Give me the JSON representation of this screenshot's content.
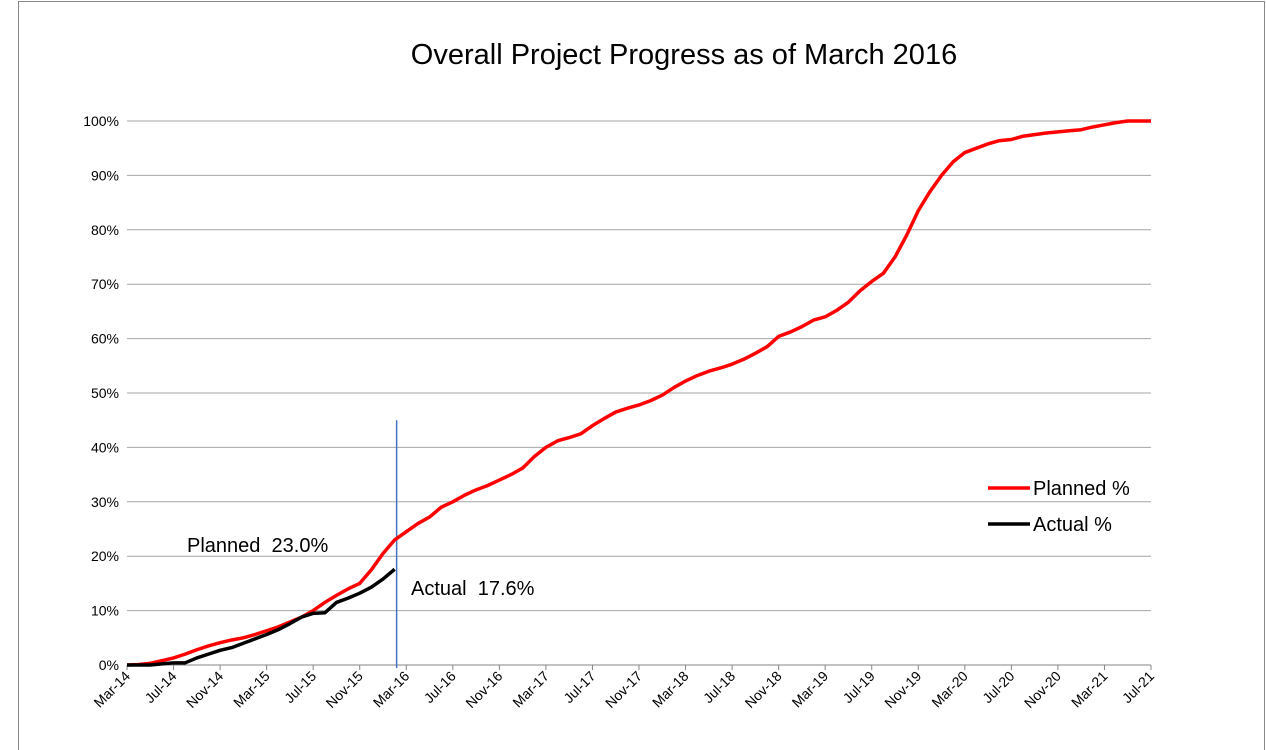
{
  "chart_data": {
    "type": "line",
    "title": "Overall Project Progress as of March 2016",
    "categories": [
      "Mar-14",
      null,
      null,
      null,
      "Jul-14",
      null,
      null,
      null,
      "Nov-14",
      null,
      null,
      null,
      "Mar-15",
      null,
      null,
      null,
      "Jul-15",
      null,
      null,
      null,
      "Nov-15",
      null,
      null,
      null,
      "Mar-16",
      null,
      null,
      null,
      "Jul-16",
      null,
      null,
      null,
      "Nov-16",
      null,
      null,
      null,
      "Mar-17",
      null,
      null,
      null,
      "Jul-17",
      null,
      null,
      null,
      "Nov-17",
      null,
      null,
      null,
      "Mar-18",
      null,
      null,
      null,
      "Jul-18",
      null,
      null,
      null,
      "Nov-18",
      null,
      null,
      null,
      "Mar-19",
      null,
      null,
      null,
      "Jul-19",
      null,
      null,
      null,
      "Nov-19",
      null,
      null,
      null,
      "Mar-20",
      null,
      null,
      null,
      "Jul-20",
      null,
      null,
      null,
      "Nov-20",
      null,
      null,
      null,
      "Mar-21",
      null,
      null,
      null,
      "Jul-21"
    ],
    "series": [
      {
        "name": "Planned %",
        "color": "#ff0000",
        "values": [
          0,
          0.1,
          0.3,
          0.8,
          1.3,
          2.0,
          2.8,
          3.5,
          4.1,
          4.6,
          5.0,
          5.6,
          6.3,
          7.0,
          7.9,
          8.8,
          10.0,
          11.5,
          12.8,
          14.0,
          15.0,
          17.5,
          20.5,
          23.0,
          24.5,
          26.0,
          27.2,
          29.0,
          30.0,
          31.2,
          32.2,
          33.0,
          34.0,
          35.0,
          36.2,
          38.3,
          40.0,
          41.2,
          41.8,
          42.5,
          44.0,
          45.3,
          46.5,
          47.2,
          47.8,
          48.6,
          49.6,
          51.0,
          52.2,
          53.2,
          54.0,
          54.6,
          55.3,
          56.2,
          57.3,
          58.5,
          60.4,
          61.2,
          62.2,
          63.4,
          64.0,
          65.2,
          66.7,
          68.8,
          70.5,
          72.0,
          75.0,
          79.0,
          83.5,
          87.0,
          90.0,
          92.5,
          94.2,
          95.0,
          95.8,
          96.4,
          96.6,
          97.2,
          97.5,
          97.8,
          98.0,
          98.2,
          98.4,
          98.9,
          99.3,
          99.7,
          100,
          100,
          100
        ]
      },
      {
        "name": "Actual %",
        "color": "#000000",
        "values": [
          0,
          0,
          0,
          0.2,
          0.4,
          0.4,
          1.3,
          2.0,
          2.7,
          3.2,
          4.0,
          4.8,
          5.6,
          6.5,
          7.6,
          8.8,
          9.5,
          9.6,
          11.5,
          12.3,
          13.2,
          14.3,
          15.8,
          17.6,
          null,
          null,
          null,
          null,
          null,
          null,
          null,
          null,
          null,
          null,
          null,
          null,
          null,
          null,
          null,
          null,
          null,
          null,
          null,
          null,
          null,
          null,
          null,
          null,
          null,
          null,
          null,
          null,
          null,
          null,
          null,
          null,
          null,
          null,
          null,
          null,
          null,
          null,
          null,
          null,
          null,
          null,
          null,
          null,
          null,
          null,
          null,
          null,
          null,
          null,
          null,
          null,
          null,
          null,
          null,
          null,
          null,
          null,
          null,
          null,
          null,
          null,
          null,
          null,
          null
        ]
      }
    ],
    "ylim": [
      0,
      100
    ],
    "yticks": [
      {
        "value": 0,
        "label": "0%"
      },
      {
        "value": 10,
        "label": "10%"
      },
      {
        "value": 20,
        "label": "20%"
      },
      {
        "value": 30,
        "label": "30%"
      },
      {
        "value": 40,
        "label": "40%"
      },
      {
        "value": 50,
        "label": "50%"
      },
      {
        "value": 60,
        "label": "60%"
      },
      {
        "value": 70,
        "label": "70%"
      },
      {
        "value": 80,
        "label": "80%"
      },
      {
        "value": 90,
        "label": "90%"
      },
      {
        "value": 100,
        "label": "100%"
      }
    ],
    "grid": true,
    "legend": "right",
    "annotations": [
      "Planned  23.0%",
      "Actual  17.6%"
    ]
  }
}
